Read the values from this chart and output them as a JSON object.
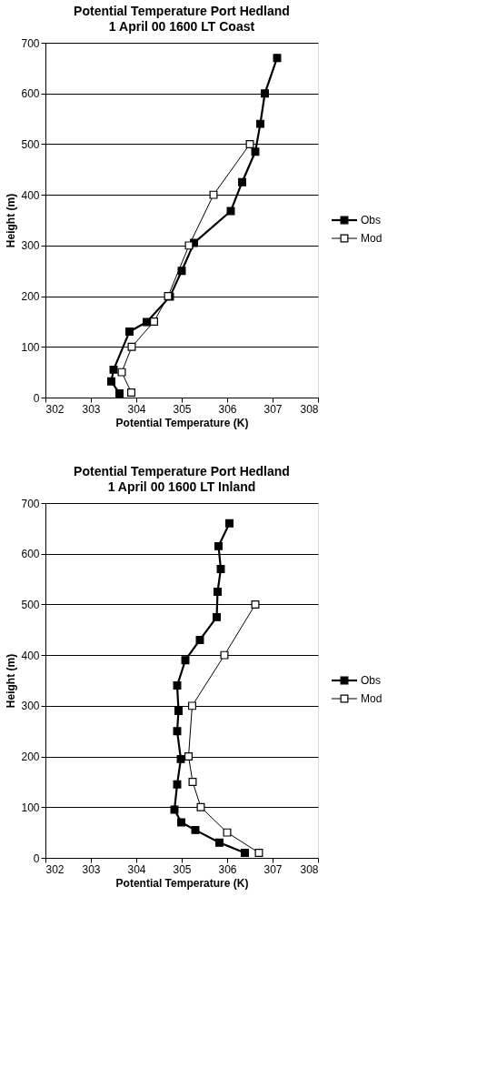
{
  "chart_data": [
    {
      "type": "line",
      "title": "Potential Temperature      Port Hedland",
      "subtitle": "1 April  00          1600 LT          Coast",
      "xlabel": "Potential Temperature (K)",
      "ylabel": "Height (m)",
      "xlim": [
        302,
        308
      ],
      "xticks": [
        302,
        303,
        304,
        305,
        306,
        307,
        308
      ],
      "ylim": [
        0,
        700
      ],
      "yticks": [
        0,
        100,
        200,
        300,
        400,
        500,
        600,
        700
      ],
      "grid": "y",
      "legend": "right",
      "marker": "square",
      "series": [
        {
          "name": "Obs",
          "color": "#000000",
          "x": [
            307.1,
            306.83,
            306.73,
            306.62,
            306.33,
            306.08,
            305.27,
            305.0,
            304.74,
            304.23,
            303.85,
            303.5,
            303.45,
            303.63
          ],
          "values": [
            670,
            600,
            540,
            485,
            425,
            368,
            305,
            250,
            199,
            149,
            130,
            55,
            32,
            8
          ]
        },
        {
          "name": "Mod",
          "color": "#000000",
          "x": [
            306.5,
            305.7,
            305.16,
            304.7,
            304.39,
            303.9,
            303.68,
            303.89
          ],
          "values": [
            500,
            400,
            300,
            200,
            150,
            100,
            50,
            10
          ]
        }
      ]
    },
    {
      "type": "line",
      "title": "Potential Temperature      Port Hedland",
      "subtitle": "1 April  00          1600 LT          Inland",
      "xlabel": "Potential Temperature (K)",
      "ylabel": "Height (m)",
      "xlim": [
        302,
        308
      ],
      "xticks": [
        302,
        303,
        304,
        305,
        306,
        307,
        308
      ],
      "ylim": [
        0,
        700
      ],
      "yticks": [
        0,
        100,
        200,
        300,
        400,
        500,
        600,
        700
      ],
      "grid": "y",
      "legend": "right",
      "marker": "square",
      "series": [
        {
          "name": "Obs",
          "color": "#000000",
          "x": [
            306.05,
            305.81,
            305.86,
            305.79,
            305.77,
            305.4,
            305.08,
            304.9,
            304.93,
            304.9,
            304.98,
            304.9,
            304.84,
            304.99,
            305.3,
            305.83,
            306.39
          ],
          "values": [
            660,
            615,
            570,
            525,
            475,
            430,
            390,
            340,
            290,
            250,
            195,
            145,
            95,
            70,
            55,
            30,
            10
          ]
        },
        {
          "name": "Mod",
          "color": "#000000",
          "x": [
            306.62,
            305.94,
            305.23,
            305.15,
            305.24,
            305.42,
            306.0,
            306.7
          ],
          "values": [
            500,
            400,
            300,
            200,
            150,
            100,
            50,
            10
          ]
        }
      ]
    }
  ]
}
